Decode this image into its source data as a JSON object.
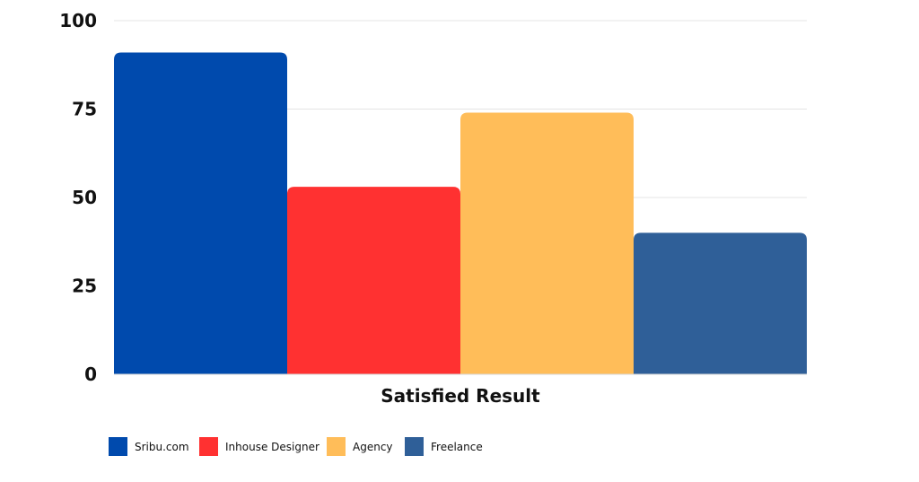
{
  "chart_data": {
    "type": "bar",
    "title": "",
    "xlabel": "Satisfied Result",
    "ylabel": "",
    "ylim": [
      0,
      100
    ],
    "yticks": [
      0,
      25,
      50,
      75,
      100
    ],
    "grid": true,
    "legend_position": "bottom-left",
    "categories": [
      "Satisfied Result"
    ],
    "series": [
      {
        "name": "Sribu.com",
        "values": [
          91
        ],
        "color": "#004AAD"
      },
      {
        "name": "Inhouse Designer",
        "values": [
          53
        ],
        "color": "#FF3131"
      },
      {
        "name": "Agency",
        "values": [
          74
        ],
        "color": "#FFBD59"
      },
      {
        "name": "Freelance",
        "values": [
          40
        ],
        "color": "#2F5F98"
      }
    ]
  }
}
